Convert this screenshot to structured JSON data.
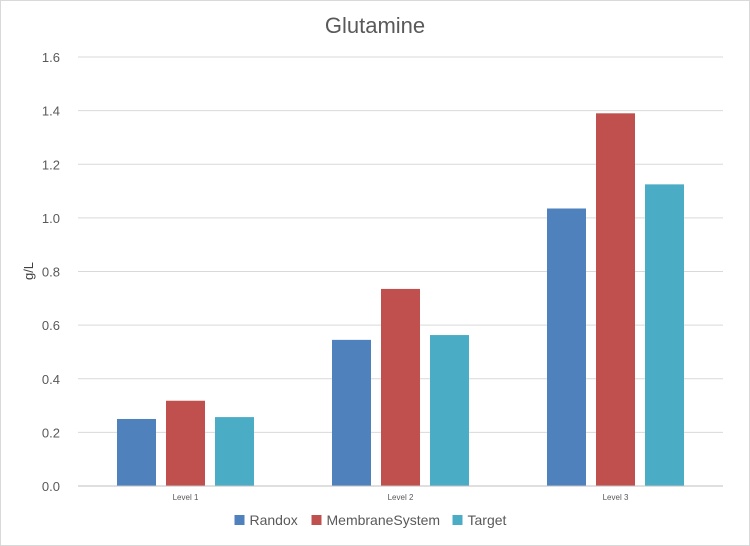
{
  "chart_data": {
    "type": "bar",
    "title": "Glutamine",
    "xlabel": "",
    "ylabel": "g/L",
    "ylim": [
      0,
      1.6
    ],
    "yticks": [
      "0.0",
      "0.2",
      "0.4",
      "0.6",
      "0.8",
      "1.0",
      "1.2",
      "1.4",
      "1.6"
    ],
    "categories": [
      "Level 1",
      "Level 2",
      "Level 3"
    ],
    "series": [
      {
        "name": "Randox",
        "color": "#4f81bd",
        "values": [
          0.25,
          0.545,
          1.035
        ]
      },
      {
        "name": "MembraneSystem",
        "color": "#c0504d",
        "values": [
          0.318,
          0.735,
          1.39
        ]
      },
      {
        "name": "Target",
        "color": "#4bacc6",
        "values": [
          0.257,
          0.563,
          1.125
        ]
      }
    ],
    "grid": true,
    "legend_position": "bottom"
  }
}
